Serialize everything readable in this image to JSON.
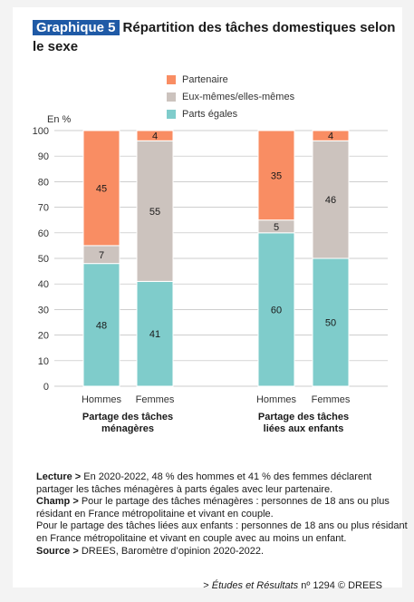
{
  "header": {
    "badge": "Graphique 5",
    "title": "Répartition des tâches domestiques selon le sexe"
  },
  "colors": {
    "partenaire": "#f98d63",
    "eux_memes": "#ccc3be",
    "parts_egales": "#7fcccb",
    "badge": "#1f5aa6"
  },
  "chart_data": {
    "type": "bar",
    "stacked": true,
    "ylabel": "En %",
    "ylim": [
      0,
      100
    ],
    "yticks": [
      0,
      10,
      20,
      30,
      40,
      50,
      60,
      70,
      80,
      90,
      100
    ],
    "legend": [
      "Partenaire",
      "Eux-mêmes/elles-mêmes",
      "Parts égales"
    ],
    "legend_position": "top",
    "groups": [
      {
        "label": "Partage des tâches ménagères",
        "categories": [
          "Hommes",
          "Femmes"
        ],
        "series": [
          {
            "name": "Parts égales",
            "values": [
              48,
              41
            ]
          },
          {
            "name": "Eux-mêmes/elles-mêmes",
            "values": [
              7,
              55
            ]
          },
          {
            "name": "Partenaire",
            "values": [
              45,
              4
            ]
          }
        ]
      },
      {
        "label": "Partage des tâches liées aux enfants",
        "categories": [
          "Hommes",
          "Femmes"
        ],
        "series": [
          {
            "name": "Parts égales",
            "values": [
              60,
              50
            ]
          },
          {
            "name": "Eux-mêmes/elles-mêmes",
            "values": [
              5,
              46
            ]
          },
          {
            "name": "Partenaire",
            "values": [
              35,
              4
            ]
          }
        ]
      }
    ]
  },
  "notes": {
    "lecture_label": "Lecture >",
    "lecture_text": "En 2020-2022, 48 % des hommes et 41 % des femmes déclarent partager les tâches ménagères à parts égales avec leur partenaire.",
    "champ_label": "Champ >",
    "champ_text": "Pour le partage des tâches ménagères : personnes de 18 ans ou plus résidant en France métropolitaine et vivant en couple.",
    "champ_text2": "Pour le partage des tâches liées aux enfants : personnes de 18 ans ou plus résidant en France métropolitaine et vivant en couple avec au moins un enfant.",
    "source_label": "Source >",
    "source_text": "DREES, Baromètre d’opinion 2020-2022.",
    "credit_prefix": "> ",
    "credit_pub": "Études et Résultats",
    "credit_rest": " nº 1294 © DREES"
  }
}
